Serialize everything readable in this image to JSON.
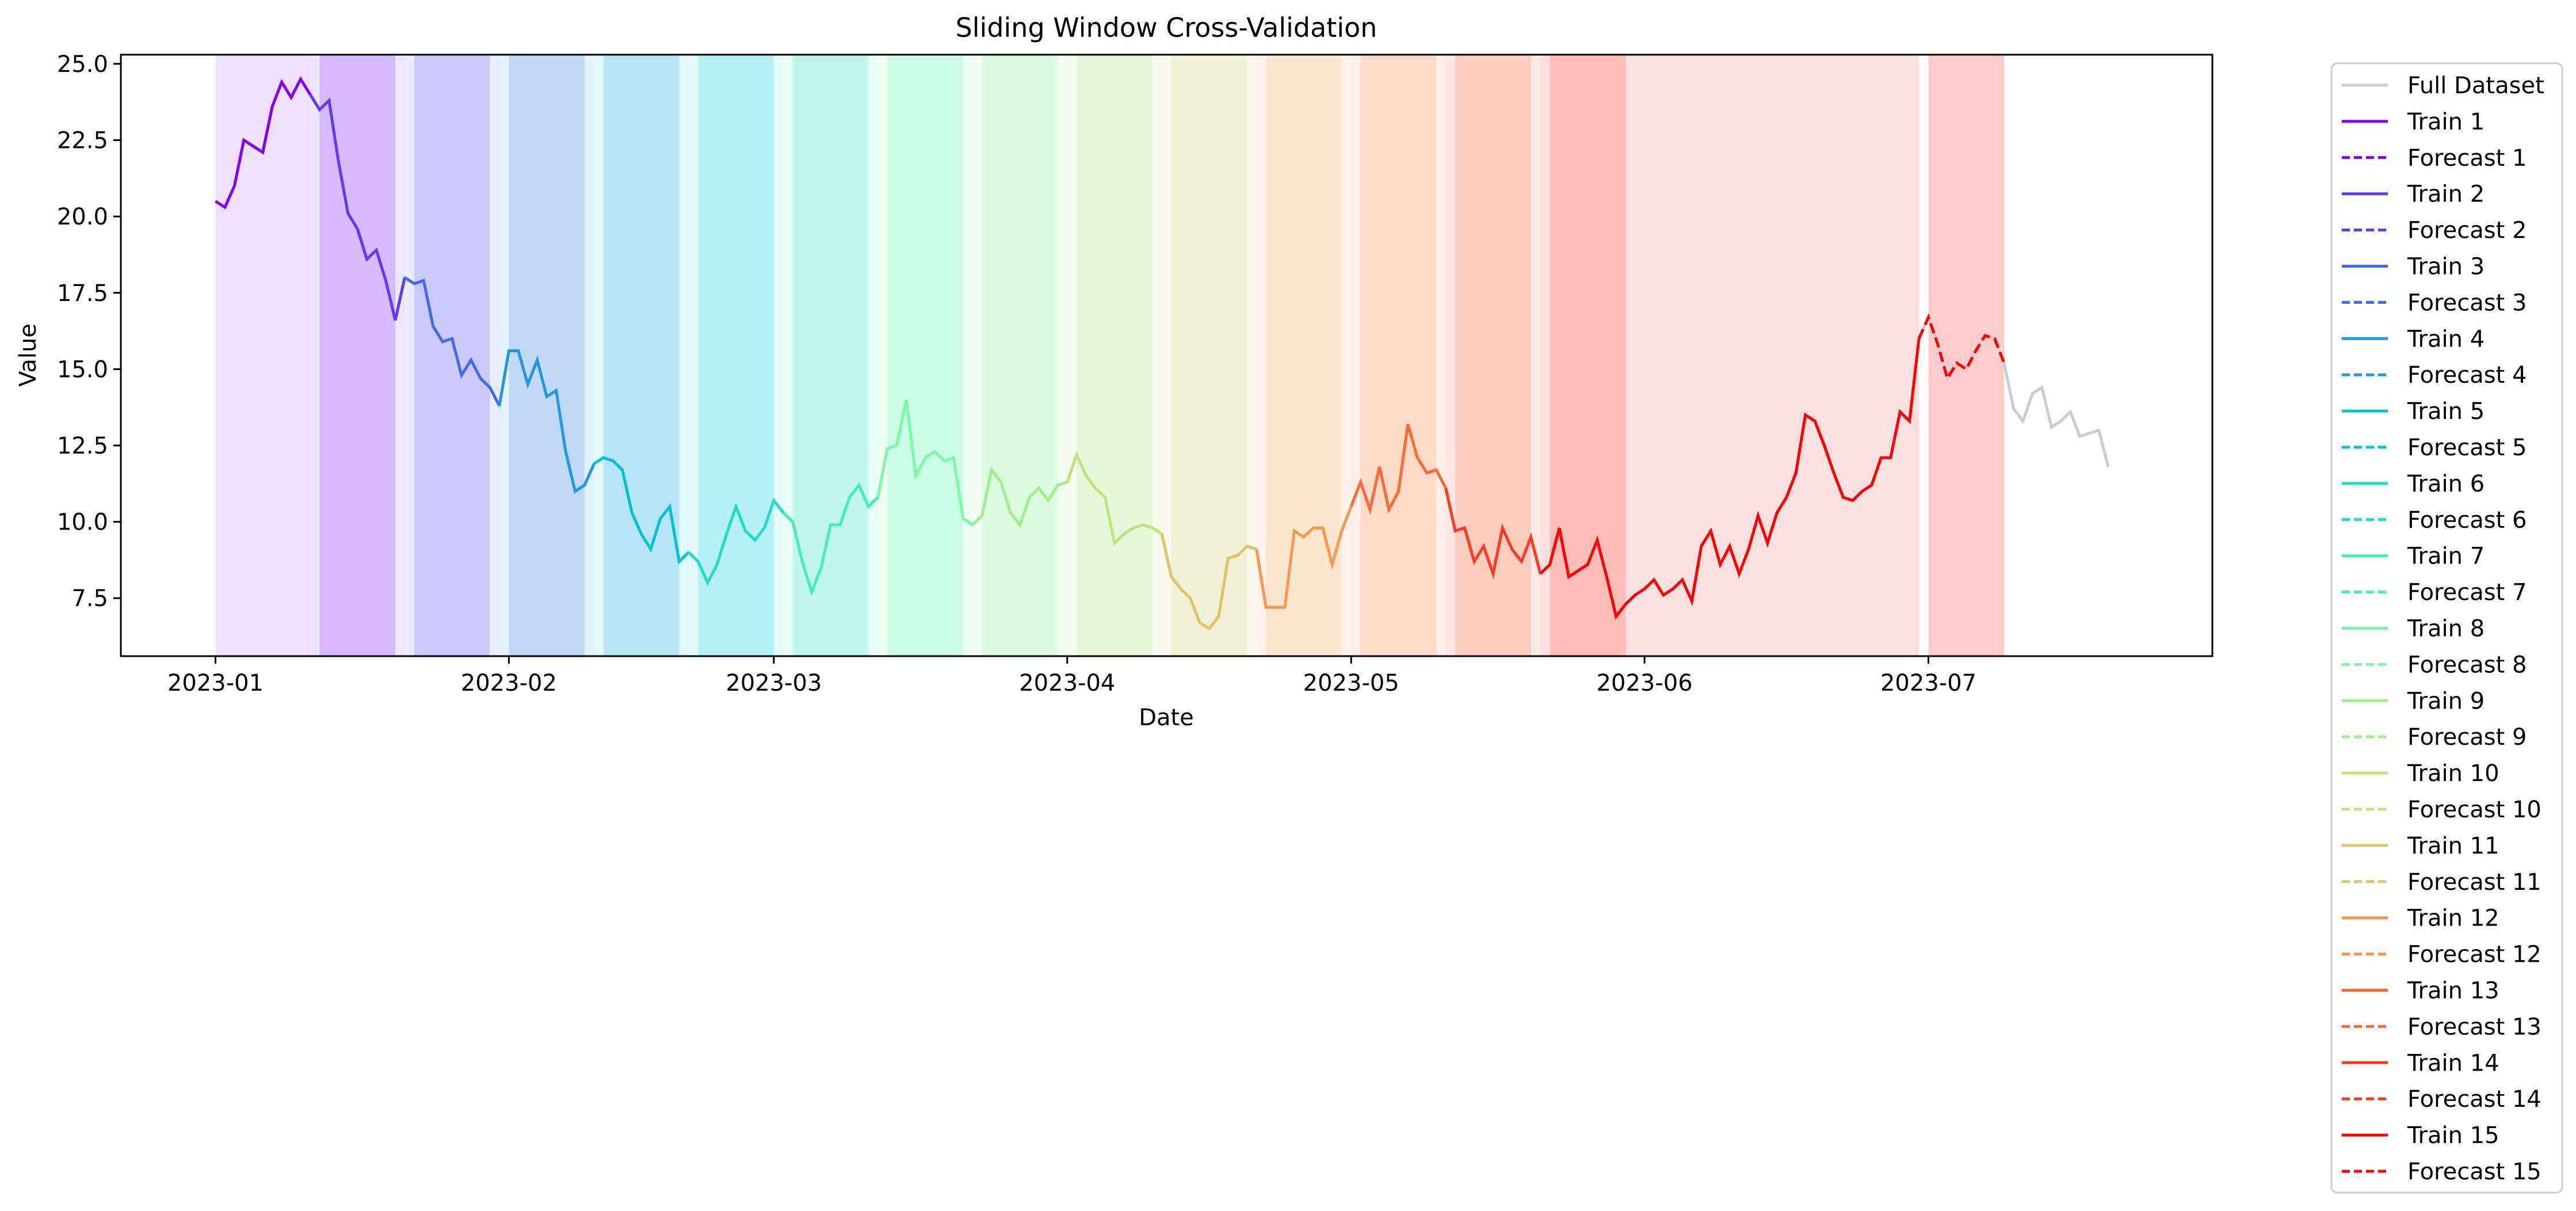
{
  "chart_data": {
    "type": "line",
    "title": "Sliding Window Cross-Validation",
    "xlabel": "Date",
    "ylabel": "Value",
    "xlim": [
      "2022-12-22",
      "2023-07-31"
    ],
    "ylim": [
      5.6,
      25.3
    ],
    "x_ticks": [
      "2023-01-01",
      "2023-02-01",
      "2023-03-01",
      "2023-04-01",
      "2023-05-01",
      "2023-06-01",
      "2023-07-01"
    ],
    "x_tick_labels": [
      "2023-01",
      "2023-02",
      "2023-03",
      "2023-04",
      "2023-05",
      "2023-06",
      "2023-07"
    ],
    "y_ticks": [
      7.5,
      10.0,
      12.5,
      15.0,
      17.5,
      20.0,
      22.5,
      25.0
    ],
    "y_tick_labels": [
      "7.5",
      "10.0",
      "12.5",
      "15.0",
      "17.5",
      "20.0",
      "22.5",
      "25.0"
    ],
    "grid": false,
    "legend_placement": "outside-upper-right",
    "full_dataset": {
      "name": "Full Dataset",
      "color": "#cccccc",
      "start_date": "2023-01-01",
      "values": [
        20.5,
        20.3,
        21.0,
        22.5,
        22.3,
        22.1,
        23.6,
        24.4,
        23.9,
        24.5,
        24.0,
        23.5,
        23.8,
        21.8,
        20.1,
        19.6,
        18.6,
        18.9,
        17.9,
        16.6,
        18.0,
        17.8,
        17.9,
        16.4,
        15.9,
        16.0,
        14.8,
        15.3,
        14.7,
        14.4,
        13.8,
        15.6,
        15.6,
        14.5,
        15.3,
        14.1,
        14.3,
        12.3,
        11.0,
        11.2,
        11.9,
        12.1,
        12.0,
        11.7,
        10.3,
        9.6,
        9.1,
        10.1,
        10.5,
        8.7,
        9.0,
        8.7,
        8.0,
        8.6,
        9.6,
        10.5,
        9.7,
        9.4,
        9.8,
        10.7,
        10.3,
        10.0,
        8.7,
        7.7,
        8.5,
        9.9,
        9.9,
        10.8,
        11.2,
        10.5,
        10.8,
        12.4,
        12.5,
        14.0,
        11.5,
        12.1,
        12.3,
        12.0,
        12.1,
        10.1,
        9.9,
        10.2,
        11.7,
        11.3,
        10.3,
        9.9,
        10.8,
        11.1,
        10.7,
        11.2,
        11.3,
        12.2,
        11.5,
        11.1,
        10.8,
        9.3,
        9.6,
        9.8,
        9.9,
        9.8,
        9.6,
        8.2,
        7.8,
        7.5,
        6.7,
        6.5,
        6.9,
        8.8,
        8.9,
        9.2,
        9.1,
        7.2,
        7.2,
        7.2,
        9.7,
        9.5,
        9.8,
        9.8,
        8.6,
        9.7,
        10.5,
        11.3,
        10.4,
        11.8,
        10.4,
        11.0,
        13.2,
        12.1,
        11.6,
        11.7,
        11.1,
        9.7,
        9.8,
        8.7,
        9.2,
        8.3,
        9.8,
        9.1,
        8.7,
        9.5,
        8.3,
        8.6,
        9.8,
        8.2,
        8.4,
        8.6,
        9.4,
        8.2,
        6.9,
        7.3,
        7.6,
        7.8,
        8.1,
        7.6,
        7.8,
        8.1,
        7.4,
        9.2,
        9.7,
        8.6,
        9.2,
        8.3,
        9.1,
        10.2,
        9.3,
        10.3,
        10.8,
        11.6,
        13.5,
        13.3,
        12.5,
        11.6,
        10.8,
        10.7,
        11.0,
        11.2,
        12.1,
        12.1,
        13.6,
        13.3,
        16.0,
        16.7,
        15.8,
        14.7,
        15.2,
        15.0,
        15.6,
        16.1,
        16.0,
        15.2,
        13.7,
        13.3,
        14.2,
        14.4,
        13.1,
        13.3,
        13.6,
        12.8,
        12.9,
        13.0,
        11.8
      ]
    },
    "windows": [
      {
        "train_name": "Train 1",
        "forecast_name": "Forecast 1",
        "color": "#7f00ff",
        "train_start": 0,
        "train_end": 10,
        "forecast_end": 19
      },
      {
        "train_name": "Train 2",
        "forecast_name": "Forecast 2",
        "color": "#5f38f8",
        "train_start": 10,
        "train_end": 20,
        "forecast_end": 29
      },
      {
        "train_name": "Train 3",
        "forecast_name": "Forecast 3",
        "color": "#3f6cef",
        "train_start": 20,
        "train_end": 30,
        "forecast_end": 39
      },
      {
        "train_name": "Train 4",
        "forecast_name": "Forecast 4",
        "color": "#1f97e4",
        "train_start": 30,
        "train_end": 40,
        "forecast_end": 49
      },
      {
        "train_name": "Train 5",
        "forecast_name": "Forecast 5",
        "color": "#00c2d6",
        "train_start": 40,
        "train_end": 50,
        "forecast_end": 59
      },
      {
        "train_name": "Train 6",
        "forecast_name": "Forecast 6",
        "color": "#20dcc8",
        "train_start": 50,
        "train_end": 60,
        "forecast_end": 69
      },
      {
        "train_name": "Train 7",
        "forecast_name": "Forecast 7",
        "color": "#40f0b6",
        "train_start": 60,
        "train_end": 70,
        "forecast_end": 79
      },
      {
        "train_name": "Train 8",
        "forecast_name": "Forecast 8",
        "color": "#78fca4",
        "train_start": 70,
        "train_end": 80,
        "forecast_end": 89
      },
      {
        "train_name": "Train 9",
        "forecast_name": "Forecast 9",
        "color": "#9ef08c",
        "train_start": 80,
        "train_end": 90,
        "forecast_end": 99
      },
      {
        "train_name": "Train 10",
        "forecast_name": "Forecast 10",
        "color": "#c2e27a",
        "train_start": 90,
        "train_end": 100,
        "forecast_end": 109
      },
      {
        "train_name": "Train 11",
        "forecast_name": "Forecast 11",
        "color": "#e0c468",
        "train_start": 100,
        "train_end": 110,
        "forecast_end": 119
      },
      {
        "train_name": "Train 12",
        "forecast_name": "Forecast 12",
        "color": "#ff9650",
        "train_start": 110,
        "train_end": 120,
        "forecast_end": 129
      },
      {
        "train_name": "Train 13",
        "forecast_name": "Forecast 13",
        "color": "#ff6a38",
        "train_start": 120,
        "train_end": 130,
        "forecast_end": 139
      },
      {
        "train_name": "Train 14",
        "forecast_name": "Forecast 14",
        "color": "#ff3a1e",
        "train_start": 130,
        "train_end": 140,
        "forecast_end": 149
      },
      {
        "train_name": "Train 15",
        "forecast_name": "Forecast 15",
        "color": "#ff0000",
        "train_start": 140,
        "train_end": 180,
        "forecast_end": 189
      }
    ]
  }
}
